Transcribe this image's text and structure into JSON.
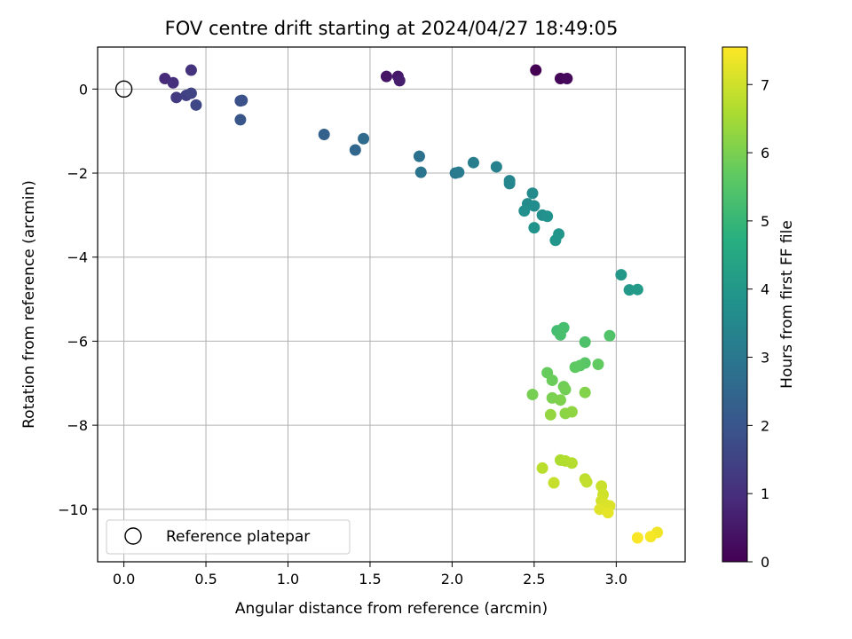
{
  "chart_data": {
    "type": "scatter",
    "title": "FOV centre drift starting at 2024/04/27 18:49:05",
    "xlabel": "Angular distance from reference (arcmin)",
    "ylabel": "Rotation from reference (arcmin)",
    "xlim": [
      -0.16,
      3.42
    ],
    "ylim": [
      -11.25,
      1.0
    ],
    "xticks": [
      0.0,
      0.5,
      1.0,
      1.5,
      2.0,
      2.5,
      3.0
    ],
    "xtick_labels": [
      "0.0",
      "0.5",
      "1.0",
      "1.5",
      "2.0",
      "2.5",
      "3.0"
    ],
    "yticks": [
      0,
      -2,
      -4,
      -6,
      -8,
      -10
    ],
    "ytick_labels": [
      "0",
      "−2",
      "−4",
      "−6",
      "−8",
      "−10"
    ],
    "grid": true,
    "colorbar": {
      "label": "Hours from first FF file",
      "min": 0,
      "max": 7.55,
      "colormap": "viridis",
      "ticks": [
        0,
        1,
        2,
        3,
        4,
        5,
        6,
        7
      ],
      "tick_labels": [
        "0",
        "1",
        "2",
        "3",
        "4",
        "5",
        "6",
        "7"
      ]
    },
    "legend": {
      "position": "lower-left",
      "label": "Reference platepar"
    },
    "reference_point": {
      "x": 0.0,
      "y": 0.0
    },
    "series": [
      {
        "points": [
          [
            2.51,
            0.45,
            0.0
          ],
          [
            2.66,
            0.25,
            0.1
          ],
          [
            2.7,
            0.25,
            0.2
          ],
          [
            1.6,
            0.3,
            0.4
          ],
          [
            1.67,
            0.3,
            0.5
          ],
          [
            1.68,
            0.2,
            0.6
          ],
          [
            0.25,
            0.25,
            0.9
          ],
          [
            0.3,
            0.15,
            1.0
          ],
          [
            0.41,
            0.45,
            1.1
          ],
          [
            0.32,
            -0.2,
            1.3
          ],
          [
            0.38,
            -0.15,
            1.4
          ],
          [
            0.41,
            -0.1,
            1.5
          ],
          [
            0.44,
            -0.38,
            1.6
          ],
          [
            0.71,
            -0.28,
            1.8
          ],
          [
            0.72,
            -0.27,
            1.9
          ],
          [
            0.71,
            -0.73,
            2.0
          ],
          [
            1.22,
            -1.08,
            2.3
          ],
          [
            1.41,
            -1.45,
            2.5
          ],
          [
            1.46,
            -1.18,
            2.6
          ],
          [
            1.8,
            -1.6,
            2.8
          ],
          [
            1.81,
            -1.98,
            2.9
          ],
          [
            2.02,
            -2.0,
            3.0
          ],
          [
            2.04,
            -1.98,
            3.1
          ],
          [
            2.13,
            -1.75,
            3.2
          ],
          [
            2.27,
            -1.85,
            3.3
          ],
          [
            2.35,
            -2.18,
            3.4
          ],
          [
            2.35,
            -2.25,
            3.45
          ],
          [
            2.49,
            -2.48,
            3.55
          ],
          [
            2.46,
            -2.73,
            3.6
          ],
          [
            2.5,
            -2.78,
            3.65
          ],
          [
            2.44,
            -2.9,
            3.7
          ],
          [
            2.55,
            -3.0,
            3.75
          ],
          [
            2.58,
            -3.03,
            3.8
          ],
          [
            2.5,
            -3.3,
            3.85
          ],
          [
            2.65,
            -3.45,
            3.9
          ],
          [
            2.63,
            -3.6,
            3.95
          ],
          [
            3.03,
            -4.42,
            4.0
          ],
          [
            3.08,
            -4.78,
            4.05
          ],
          [
            3.13,
            -4.77,
            4.1
          ],
          [
            2.64,
            -5.75,
            5.2
          ],
          [
            2.68,
            -5.68,
            5.25
          ],
          [
            2.66,
            -5.85,
            5.3
          ],
          [
            2.81,
            -6.02,
            5.4
          ],
          [
            2.96,
            -5.87,
            5.45
          ],
          [
            2.81,
            -6.52,
            5.55
          ],
          [
            2.78,
            -6.58,
            5.6
          ],
          [
            2.75,
            -6.62,
            5.65
          ],
          [
            2.89,
            -6.55,
            5.7
          ],
          [
            2.58,
            -6.75,
            5.75
          ],
          [
            2.61,
            -6.93,
            5.8
          ],
          [
            2.68,
            -7.08,
            5.85
          ],
          [
            2.69,
            -7.15,
            5.9
          ],
          [
            2.49,
            -7.27,
            5.95
          ],
          [
            2.61,
            -7.35,
            6.0
          ],
          [
            2.66,
            -7.4,
            6.05
          ],
          [
            2.81,
            -7.22,
            6.1
          ],
          [
            2.69,
            -7.72,
            6.2
          ],
          [
            2.73,
            -7.68,
            6.25
          ],
          [
            2.6,
            -7.75,
            6.3
          ],
          [
            2.66,
            -8.83,
            6.6
          ],
          [
            2.69,
            -8.85,
            6.65
          ],
          [
            2.73,
            -8.9,
            6.7
          ],
          [
            2.55,
            -9.02,
            6.75
          ],
          [
            2.81,
            -9.28,
            6.8
          ],
          [
            2.82,
            -9.35,
            6.85
          ],
          [
            2.62,
            -9.37,
            6.9
          ],
          [
            2.91,
            -9.45,
            6.95
          ],
          [
            2.92,
            -9.65,
            7.0
          ],
          [
            2.91,
            -9.8,
            7.05
          ],
          [
            2.93,
            -9.88,
            7.1
          ],
          [
            2.96,
            -9.92,
            7.15
          ],
          [
            2.9,
            -10.0,
            7.2
          ],
          [
            2.95,
            -10.08,
            7.25
          ],
          [
            3.25,
            -10.55,
            7.4
          ],
          [
            3.21,
            -10.65,
            7.45
          ],
          [
            3.13,
            -10.68,
            7.5
          ]
        ]
      }
    ]
  }
}
